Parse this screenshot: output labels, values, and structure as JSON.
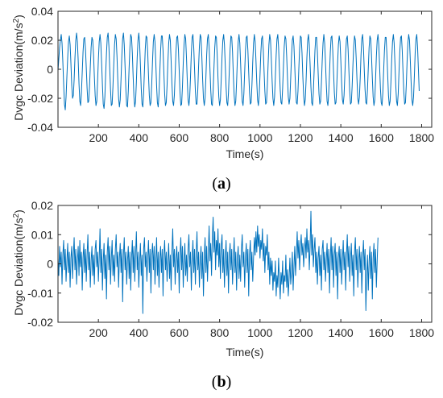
{
  "figure": {
    "series_color": "#0072BD",
    "axis_color": "#262626"
  },
  "chart_data": [
    {
      "type": "line",
      "caption_open": "(",
      "caption_letter": "a",
      "caption_close": ")",
      "xlabel": "Time(s)",
      "ylabel": "Dvgc Deviation(m/s",
      "ylabel_sup": "2",
      "ylabel_close": ")",
      "xlim": [
        0,
        1850
      ],
      "ylim": [
        -0.04,
        0.04
      ],
      "xticks": [
        200,
        400,
        600,
        800,
        1000,
        1200,
        1400,
        1600,
        1800
      ],
      "xtick_labels": [
        "200",
        "400",
        "600",
        "800",
        "1000",
        "1200",
        "1400",
        "1600",
        "1800"
      ],
      "yticks": [
        -0.04,
        -0.02,
        0,
        0.02,
        0.04
      ],
      "ytick_labels": [
        "-0.04",
        "-0.02",
        "0",
        "0.02",
        "0.04"
      ],
      "grid": false,
      "series": [
        {
          "x_start": 0,
          "x_step": 4,
          "values": [
            -0.001,
            0.007,
            0.015,
            0.02,
            0.024,
            0.018,
            0.005,
            -0.01,
            -0.024,
            -0.028,
            -0.019,
            -0.005,
            0.008,
            0.019,
            0.023,
            0.017,
            0.004,
            -0.011,
            -0.02,
            -0.018,
            -0.007,
            0.008,
            0.02,
            0.025,
            0.019,
            0.006,
            -0.01,
            -0.022,
            -0.025,
            -0.016,
            -0.002,
            0.012,
            0.021,
            0.022,
            0.014,
            0.001,
            -0.013,
            -0.023,
            -0.022,
            -0.012,
            0.002,
            0.015,
            0.022,
            0.02,
            0.01,
            -0.005,
            -0.018,
            -0.025,
            -0.022,
            -0.008,
            0.007,
            0.019,
            0.024,
            0.018,
            0.004,
            -0.011,
            -0.024,
            -0.027,
            -0.019,
            -0.003,
            0.011,
            0.022,
            0.025,
            0.016,
            0.001,
            -0.014,
            -0.025,
            -0.024,
            -0.012,
            0.003,
            0.017,
            0.024,
            0.021,
            0.009,
            -0.007,
            -0.02,
            -0.026,
            -0.021,
            -0.007,
            0.009,
            0.021,
            0.025,
            0.017,
            0.002,
            -0.014,
            -0.025,
            -0.026,
            -0.015,
            0.001,
            0.015,
            0.024,
            0.022,
            0.011,
            -0.005,
            -0.019,
            -0.026,
            -0.022,
            -0.009,
            0.008,
            0.02,
            0.025,
            0.018,
            0.003,
            -0.013,
            -0.024,
            -0.026,
            -0.016,
            -0.001,
            0.014,
            0.023,
            0.022,
            0.012,
            -0.004,
            -0.018,
            -0.025,
            -0.023,
            -0.01,
            0.006,
            0.019,
            0.024,
            0.019,
            0.005,
            -0.011,
            -0.023,
            -0.026,
            -0.017,
            -0.002,
            0.013,
            0.023,
            0.023,
            0.013,
            -0.002,
            -0.017,
            -0.025,
            -0.023,
            -0.011,
            0.005,
            0.018,
            0.024,
            0.02,
            0.006,
            -0.01,
            -0.022,
            -0.025,
            -0.018,
            -0.003,
            0.012,
            0.022,
            0.023,
            0.014,
            -0.001,
            -0.016,
            -0.025,
            -0.024,
            -0.012,
            0.004,
            0.017,
            0.024,
            0.021,
            0.008,
            -0.008,
            -0.021,
            -0.025,
            -0.019,
            -0.005,
            0.011,
            0.022,
            0.024,
            0.015,
            0.0,
            -0.015,
            -0.024,
            -0.024,
            -0.014,
            0.002,
            0.016,
            0.024,
            0.022,
            0.009,
            -0.007,
            -0.02,
            -0.025,
            -0.02,
            -0.006,
            0.01,
            0.021,
            0.024,
            0.016,
            0.001,
            -0.014,
            -0.024,
            -0.025,
            -0.015,
            0.001,
            0.015,
            0.023,
            0.022,
            0.01,
            -0.006,
            -0.019,
            -0.025,
            -0.021,
            -0.007,
            0.009,
            0.02,
            0.024,
            0.017,
            0.003,
            -0.012,
            -0.023,
            -0.025,
            -0.016,
            -0.001,
            0.014,
            0.023,
            0.022,
            0.012,
            -0.004,
            -0.018,
            -0.025,
            -0.022,
            -0.009,
            0.007,
            0.019,
            0.024,
            0.018,
            0.004,
            -0.011,
            -0.022,
            -0.025,
            -0.017,
            -0.002,
            0.013,
            0.022,
            0.023,
            0.013,
            -0.002,
            -0.016,
            -0.024,
            -0.023,
            -0.011,
            0.005,
            0.018,
            0.024,
            0.019,
            0.006,
            -0.009,
            -0.021,
            -0.025,
            -0.018,
            -0.004,
            0.011,
            0.021,
            0.023,
            0.014,
            -0.001,
            -0.015,
            -0.024,
            -0.023,
            -0.012,
            0.003,
            0.017,
            0.024,
            0.02,
            0.007,
            -0.008,
            -0.02,
            -0.025,
            -0.019,
            -0.005,
            0.01,
            0.021,
            0.024,
            0.015,
            0.0,
            -0.014,
            -0.023,
            -0.024,
            -0.013,
            0.002,
            0.016,
            0.023,
            0.021,
            0.009,
            -0.006,
            -0.019,
            -0.024,
            -0.02,
            -0.006,
            0.009,
            0.02,
            0.023,
            0.016,
            0.002,
            -0.013,
            -0.023,
            -0.024,
            -0.015,
            0.0,
            0.014,
            0.023,
            0.022,
            0.011,
            -0.005,
            -0.018,
            -0.025,
            -0.021,
            -0.008,
            0.008,
            0.02,
            0.024,
            0.017,
            0.003,
            -0.012,
            -0.023,
            -0.025,
            -0.016,
            -0.001,
            0.013,
            0.022,
            0.022,
            0.012,
            -0.003,
            -0.017,
            -0.024,
            -0.022,
            -0.009,
            0.006,
            0.018,
            0.024,
            0.018,
            0.005,
            -0.01,
            -0.022,
            -0.025,
            -0.017,
            -0.003,
            0.012,
            0.022,
            0.023,
            0.013,
            -0.002,
            -0.016,
            -0.024,
            -0.023,
            -0.011,
            0.004,
            0.017,
            0.023,
            0.019,
            0.006,
            -0.009,
            -0.021,
            -0.024,
            -0.018,
            -0.004,
            0.011,
            0.021,
            0.023,
            0.014,
            -0.001,
            -0.015,
            -0.024,
            -0.023,
            -0.012,
            0.003,
            0.016,
            0.023,
            0.02,
            0.008,
            -0.007,
            -0.02,
            -0.024,
            -0.019,
            -0.006,
            0.01,
            0.021,
            0.024,
            0.015,
            0.0,
            -0.014,
            -0.023,
            -0.024,
            -0.014,
            0.001,
            0.015,
            0.023,
            0.021,
            0.009,
            -0.006,
            -0.019,
            -0.025,
            -0.021,
            -0.007,
            0.009,
            0.02,
            0.024,
            0.017,
            0.002,
            -0.013,
            -0.023,
            -0.025,
            -0.016,
            -0.001,
            0.013,
            0.022,
            0.022,
            0.011,
            -0.004,
            -0.018,
            -0.025,
            -0.022,
            -0.009,
            0.007,
            0.019,
            0.024,
            0.018,
            0.004,
            -0.011,
            -0.022,
            -0.025,
            -0.017,
            -0.002,
            0.012,
            0.022,
            0.023,
            0.013,
            -0.002,
            -0.016,
            -0.024,
            -0.023,
            -0.011,
            0.005,
            0.018,
            0.024,
            0.02,
            0.006,
            -0.009,
            -0.021,
            -0.025,
            -0.019,
            -0.005,
            0.011,
            0.021,
            0.024,
            0.015,
            0.0,
            -0.015
          ]
        }
      ]
    },
    {
      "type": "line",
      "caption_open": "(",
      "caption_letter": "b",
      "caption_close": ")",
      "xlabel": "Time(s)",
      "ylabel": "Dvgc Deviation(m/s",
      "ylabel_sup": "2",
      "ylabel_close": ")",
      "xlim": [
        0,
        1850
      ],
      "ylim": [
        -0.02,
        0.02
      ],
      "xticks": [
        200,
        400,
        600,
        800,
        1000,
        1200,
        1400,
        1600,
        1800
      ],
      "xtick_labels": [
        "200",
        "400",
        "600",
        "800",
        "1000",
        "1200",
        "1400",
        "1600",
        "1800"
      ],
      "yticks": [
        -0.02,
        -0.01,
        0,
        0.01,
        0.02
      ],
      "ytick_labels": [
        "-0.02",
        "-0.01",
        "0",
        "0.01",
        "0.02"
      ],
      "grid": false,
      "series": [
        {
          "x_start": 0,
          "x_step": 4,
          "values": [
            0.002,
            -0.004,
            0.006,
            -0.001,
            0.004,
            -0.007,
            0.003,
            0.008,
            -0.002,
            0.005,
            -0.006,
            0.001,
            0.007,
            -0.003,
            0.004,
            -0.008,
            0.002,
            0.006,
            -0.005,
            0.003,
            0.009,
            -0.002,
            0.005,
            -0.007,
            0.001,
            0.006,
            -0.004,
            0.008,
            -0.001,
            0.004,
            -0.009,
            0.002,
            0.007,
            -0.003,
            0.005,
            -0.006,
            0.003,
            0.01,
            -0.002,
            0.004,
            -0.008,
            0.001,
            0.006,
            -0.004,
            0.003,
            -0.007,
            0.005,
            0.008,
            -0.001,
            0.004,
            -0.006,
            0.002,
            0.012,
            -0.003,
            0.005,
            -0.009,
            0.001,
            0.007,
            -0.005,
            0.003,
            -0.012,
            0.004,
            0.009,
            -0.002,
            0.006,
            -0.007,
            0.002,
            0.008,
            -0.004,
            0.003,
            -0.006,
            0.005,
            0.01,
            -0.001,
            0.004,
            -0.008,
            0.002,
            0.007,
            -0.003,
            0.005,
            -0.013,
            0.003,
            0.009,
            -0.002,
            0.004,
            -0.007,
            0.001,
            0.006,
            -0.005,
            0.004,
            -0.009,
            0.002,
            0.008,
            -0.003,
            0.006,
            -0.006,
            0.003,
            0.011,
            -0.002,
            0.004,
            -0.008,
            0.001,
            0.007,
            -0.004,
            0.003,
            -0.017,
            0.005,
            0.009,
            -0.001,
            0.004,
            -0.006,
            0.002,
            0.008,
            -0.003,
            0.005,
            -0.01,
            0.003,
            0.007,
            -0.002,
            0.006,
            -0.007,
            0.001,
            0.009,
            -0.004,
            0.004,
            -0.008,
            0.002,
            0.006,
            -0.003,
            0.005,
            -0.011,
            0.003,
            0.008,
            -0.002,
            0.004,
            -0.006,
            0.001,
            0.007,
            -0.005,
            0.003,
            -0.009,
            0.004,
            0.012,
            -0.001,
            0.005,
            -0.007,
            0.002,
            0.006,
            -0.003,
            0.004,
            -0.01,
            0.003,
            0.009,
            -0.002,
            0.006,
            -0.008,
            0.001,
            0.007,
            -0.004,
            0.003,
            -0.006,
            0.005,
            0.01,
            -0.001,
            0.004,
            -0.009,
            0.002,
            0.008,
            -0.003,
            0.005,
            -0.007,
            0.003,
            0.011,
            -0.002,
            0.004,
            -0.008,
            0.001,
            0.006,
            -0.005,
            0.004,
            -0.011,
            0.002,
            0.009,
            -0.003,
            0.006,
            -0.006,
            0.003,
            0.013,
            0.001,
            0.007,
            -0.004,
            0.009,
            0.016,
            0.004,
            0.011,
            -0.002,
            0.008,
            0.003,
            0.012,
            -0.001,
            0.007,
            -0.005,
            0.006,
            0.01,
            -0.003,
            0.005,
            -0.008,
            0.002,
            0.008,
            -0.004,
            0.004,
            -0.01,
            0.003,
            0.007,
            -0.002,
            0.005,
            -0.007,
            0.001,
            0.009,
            -0.003,
            0.004,
            -0.009,
            0.002,
            0.006,
            -0.005,
            0.003,
            -0.006,
            0.005,
            0.01,
            -0.001,
            0.004,
            -0.008,
            0.002,
            0.007,
            -0.003,
            0.005,
            -0.011,
            0.003,
            0.008,
            -0.002,
            0.004,
            -0.006,
            0.002,
            0.009,
            0.003,
            0.011,
            0.004,
            0.013,
            0.006,
            0.01,
            0.002,
            0.008,
            0.005,
            0.012,
            0.001,
            0.007,
            -0.003,
            0.006,
            0.003,
            0.01,
            -0.002,
            0.004,
            -0.007,
            0.002,
            -0.004,
            0.001,
            -0.009,
            -0.003,
            -0.006,
            0.001,
            -0.011,
            -0.004,
            -0.008,
            0.002,
            -0.005,
            -0.012,
            -0.003,
            -0.007,
            0.001,
            -0.01,
            -0.004,
            -0.006,
            0.003,
            -0.008,
            -0.002,
            -0.011,
            -0.005,
            0.002,
            -0.007,
            -0.003,
            0.004,
            -0.009,
            -0.001,
            0.006,
            -0.004,
            0.003,
            0.011,
            0.002,
            0.008,
            -0.002,
            0.006,
            0.01,
            0.003,
            0.007,
            -0.001,
            0.005,
            0.009,
            0.002,
            0.012,
            0.004,
            0.008,
            -0.002,
            0.006,
            0.018,
            0.003,
            0.01,
            -0.001,
            0.005,
            0.009,
            -0.003,
            0.004,
            -0.007,
            0.002,
            0.006,
            -0.004,
            0.003,
            -0.009,
            0.005,
            0.008,
            -0.002,
            0.004,
            -0.006,
            0.001,
            0.007,
            -0.003,
            0.005,
            -0.01,
            0.002,
            0.009,
            -0.002,
            0.006,
            -0.008,
            0.003,
            0.007,
            -0.004,
            0.004,
            -0.012,
            0.002,
            0.006,
            -0.003,
            0.005,
            -0.007,
            0.001,
            0.008,
            -0.002,
            0.004,
            -0.009,
            0.003,
            0.01,
            -0.001,
            0.006,
            -0.006,
            0.002,
            0.007,
            -0.004,
            0.003,
            -0.011,
            0.004,
            0.009,
            -0.002,
            0.005,
            -0.008,
            0.001,
            0.006,
            -0.003,
            0.004,
            -0.01,
            0.002,
            0.008,
            -0.002,
            0.005,
            -0.016,
            -0.004,
            0.003,
            -0.009,
            0.001,
            0.006,
            -0.005,
            0.004,
            -0.012,
            0.002,
            0.007,
            -0.003,
            0.005,
            -0.008,
            0.001,
            0.009
          ]
        }
      ]
    }
  ]
}
